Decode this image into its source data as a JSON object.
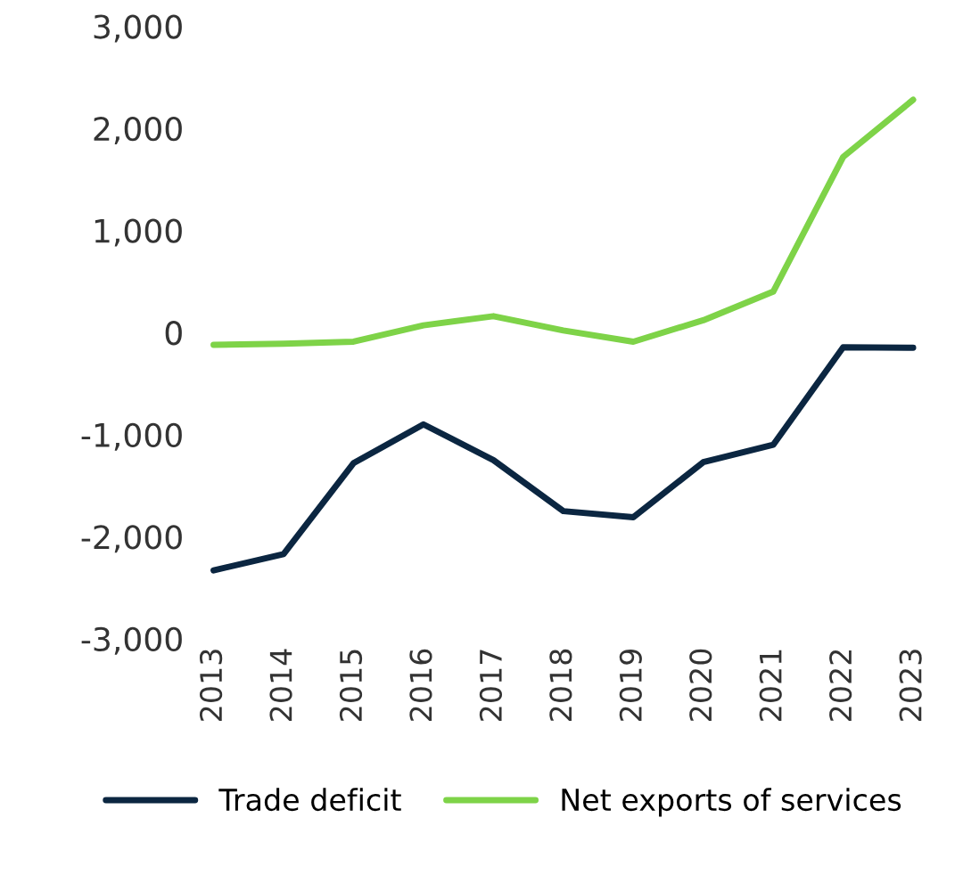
{
  "chart_data": {
    "type": "line",
    "categories": [
      "2013",
      "2014",
      "2015",
      "2016",
      "2017",
      "2018",
      "2019",
      "2020",
      "2021",
      "2022",
      "2023"
    ],
    "series": [
      {
        "name": "Trade deficit",
        "color": "#0b2641",
        "values": [
          -2330,
          -2170,
          -1280,
          -900,
          -1250,
          -1750,
          -1810,
          -1270,
          -1100,
          -145,
          -150
        ]
      },
      {
        "name": "Net exports of services",
        "color": "#7ed348",
        "values": [
          -120,
          -110,
          -90,
          70,
          160,
          20,
          -90,
          120,
          400,
          1720,
          2280
        ]
      }
    ],
    "ylim": [
      -3000,
      3000
    ],
    "yticks": [
      {
        "value": -3000,
        "label": "-3,000"
      },
      {
        "value": -2000,
        "label": "-2,000"
      },
      {
        "value": -1000,
        "label": "-1,000"
      },
      0,
      {
        "value": 1000,
        "label": "1,000"
      },
      {
        "value": 2000,
        "label": "2,000"
      },
      {
        "value": 3000,
        "label": "3,000"
      }
    ],
    "grid": false,
    "legend": "bottom",
    "marker": "none",
    "line_style": "solid"
  }
}
